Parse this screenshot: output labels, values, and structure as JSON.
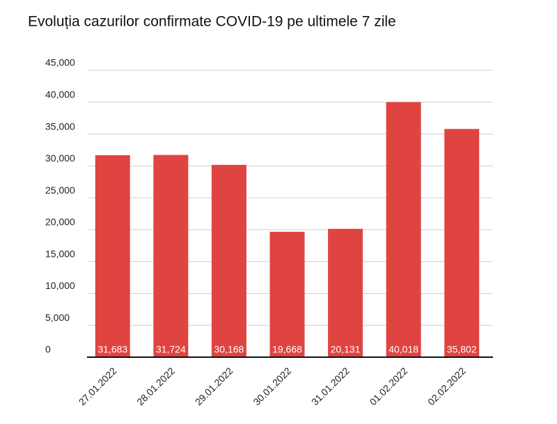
{
  "chart_data": {
    "type": "bar",
    "title": "Evoluția cazurilor confirmate COVID-19 pe ultimele 7 zile",
    "categories": [
      "27.01.2022",
      "28.01.2022",
      "29.01.2022",
      "30.01.2022",
      "31.01.2022",
      "01.02.2022",
      "02.02.2022"
    ],
    "values": [
      31683,
      31724,
      30168,
      19668,
      20131,
      40018,
      35802
    ],
    "value_labels": [
      "31,683",
      "31,724",
      "30,168",
      "19,668",
      "20,131",
      "40,018",
      "35,802"
    ],
    "color": "#e04441",
    "ylim": [
      0,
      45000
    ],
    "yticks": [
      0,
      {
        "value": 5000,
        "label": "5,000"
      },
      {
        "value": 10000,
        "label": "10,000"
      },
      {
        "value": 15000,
        "label": "15,000"
      },
      {
        "value": 20000,
        "label": "20,000"
      },
      {
        "value": 25000,
        "label": "25,000"
      },
      {
        "value": 30000,
        "label": "30,000"
      },
      {
        "value": 35000,
        "label": "35,000"
      },
      {
        "value": 40000,
        "label": "40,000"
      },
      {
        "value": 45000,
        "label": "45,000"
      }
    ],
    "grid": true
  }
}
